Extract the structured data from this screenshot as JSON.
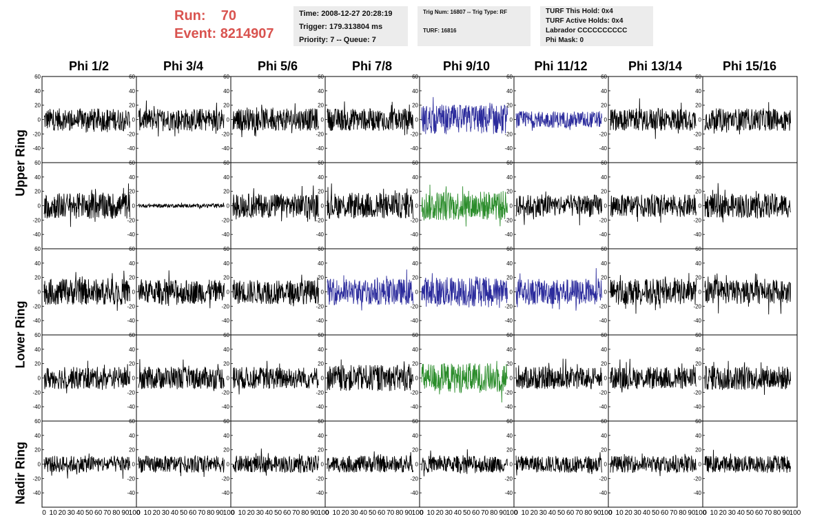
{
  "header": {
    "run_label": "Run:",
    "run_value": "70",
    "event_label": "Event:",
    "event_value": "8214907"
  },
  "info_box_1": {
    "time": "Time: 2008-12-27 20:28:19",
    "trigger": "Trigger: 179.313804 ms",
    "priority": "Priority: 7 -- Queue: 7"
  },
  "info_box_2": {
    "trig": "Trig Num: 16807 -- Trig Type: RF",
    "turf": "TURF: 16816"
  },
  "info_box_3": {
    "this_hold": "TURF This Hold: 0x4",
    "active_holds": "TURF Active Holds: 0x4",
    "labrador": "Labrador CCCCCCCCCC",
    "phi_mask": "Phi Mask: 0"
  },
  "columns": [
    "Phi 1/2",
    "Phi 3/4",
    "Phi 5/6",
    "Phi 7/8",
    "Phi 9/10",
    "Phi 11/12",
    "Phi 13/14",
    "Phi 15/16"
  ],
  "ring_labels": {
    "upper": "Upper Ring",
    "lower": "Lower Ring",
    "nadir": "Nadir Ring"
  },
  "chart_data": {
    "type": "line",
    "description_axes": {
      "ylim": [
        -60,
        60
      ],
      "y_ticks": [
        -40,
        -20,
        0,
        20,
        40,
        60
      ],
      "xlim": [
        0,
        100
      ],
      "x_tick_labels": [
        "0",
        "10",
        "20",
        "30",
        "40",
        "50",
        "60",
        "70",
        "80",
        "90",
        "100"
      ]
    },
    "rows": 5,
    "cols": 8,
    "colors": {
      "default": "#000000",
      "blue": "#2b2b9c",
      "green": "#2a8c2a"
    },
    "panel_colors": [
      [
        "default",
        "default",
        "default",
        "default",
        "blue",
        "blue",
        "default",
        "default"
      ],
      [
        "default",
        "default",
        "default",
        "default",
        "green",
        "default",
        "default",
        "default"
      ],
      [
        "default",
        "default",
        "default",
        "blue",
        "blue",
        "blue",
        "default",
        "default"
      ],
      [
        "default",
        "default",
        "default",
        "default",
        "green",
        "default",
        "default",
        "default"
      ],
      [
        "default",
        "default",
        "default",
        "default",
        "default",
        "default",
        "default",
        "default"
      ]
    ],
    "panel_amplitude": [
      [
        12,
        12,
        12,
        12,
        16,
        9,
        12,
        12
      ],
      [
        14,
        2,
        13,
        14,
        16,
        12,
        12,
        13
      ],
      [
        14,
        13,
        13,
        14,
        16,
        14,
        14,
        13
      ],
      [
        12,
        12,
        12,
        14,
        16,
        12,
        12,
        13
      ],
      [
        9,
        9,
        9,
        9,
        9,
        9,
        9,
        9
      ]
    ]
  }
}
